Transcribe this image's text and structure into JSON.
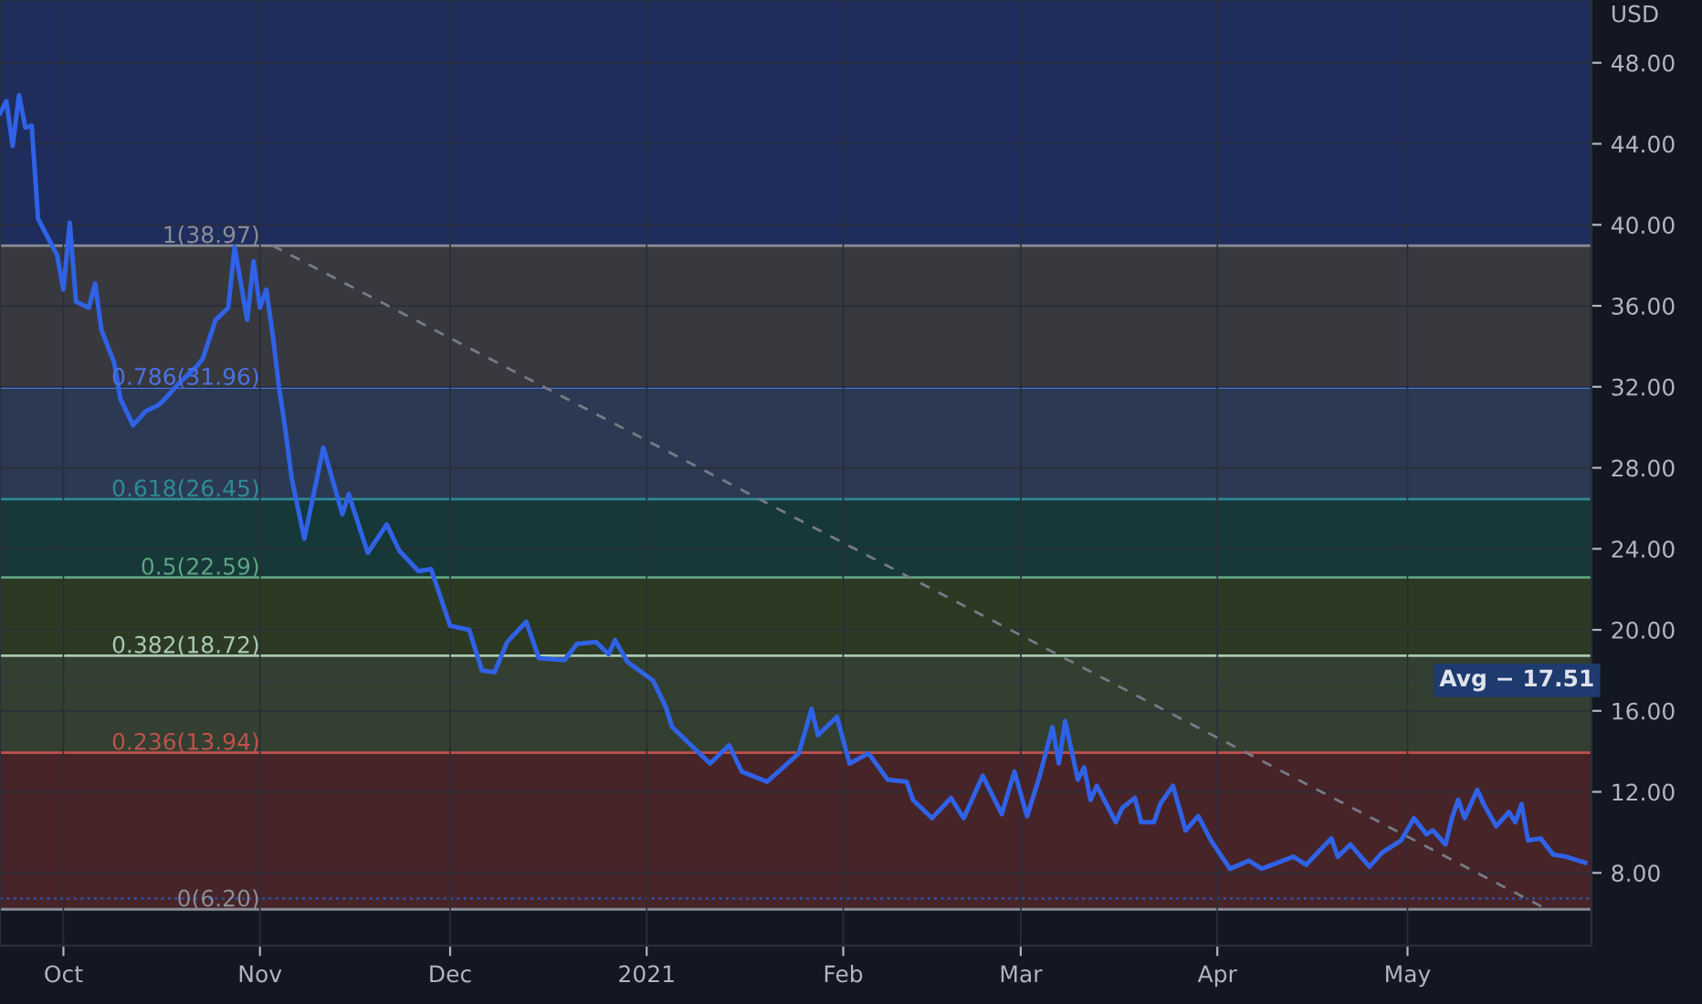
{
  "chart_data": {
    "type": "line",
    "ylabel": "USD",
    "x": [
      "2020-09-21",
      "2020-09-22",
      "2020-09-23",
      "2020-09-24",
      "2020-09-25",
      "2020-09-26",
      "2020-09-27",
      "2020-09-29",
      "2020-09-30",
      "2020-10-01",
      "2020-10-02",
      "2020-10-03",
      "2020-10-05",
      "2020-10-06",
      "2020-10-07",
      "2020-10-09",
      "2020-10-10",
      "2020-10-12",
      "2020-10-14",
      "2020-10-16",
      "2020-10-17",
      "2020-10-19",
      "2020-10-22",
      "2020-10-23",
      "2020-10-25",
      "2020-10-27",
      "2020-10-28",
      "2020-10-30",
      "2020-10-31",
      "2020-11-01",
      "2020-11-02",
      "2020-11-03",
      "2020-11-04",
      "2020-11-05",
      "2020-11-06",
      "2020-11-08",
      "2020-11-11",
      "2020-11-14",
      "2020-11-15",
      "2020-11-18",
      "2020-11-21",
      "2020-11-23",
      "2020-11-26",
      "2020-11-28",
      "2020-12-01",
      "2020-12-04",
      "2020-12-06",
      "2020-12-08",
      "2020-12-10",
      "2020-12-13",
      "2020-12-15",
      "2020-12-19",
      "2020-12-21",
      "2020-12-24",
      "2020-12-26",
      "2020-12-27",
      "2020-12-29",
      "2021-01-02",
      "2021-01-04",
      "2021-01-05",
      "2021-01-11",
      "2021-01-14",
      "2021-01-16",
      "2021-01-20",
      "2021-01-25",
      "2021-01-27",
      "2021-01-28",
      "2021-01-31",
      "2021-02-02",
      "2021-02-05",
      "2021-02-08",
      "2021-02-11",
      "2021-02-12",
      "2021-02-15",
      "2021-02-18",
      "2021-02-20",
      "2021-02-23",
      "2021-02-26",
      "2021-02-28",
      "2021-03-02",
      "2021-03-04",
      "2021-03-06",
      "2021-03-07",
      "2021-03-08",
      "2021-03-10",
      "2021-03-11",
      "2021-03-12",
      "2021-03-13",
      "2021-03-16",
      "2021-03-17",
      "2021-03-19",
      "2021-03-20",
      "2021-03-22",
      "2021-03-23",
      "2021-03-25",
      "2021-03-27",
      "2021-03-29",
      "2021-03-31",
      "2021-04-03",
      "2021-04-06",
      "2021-04-08",
      "2021-04-13",
      "2021-04-15",
      "2021-04-19",
      "2021-04-20",
      "2021-04-22",
      "2021-04-25",
      "2021-04-27",
      "2021-04-30",
      "2021-05-02",
      "2021-05-04",
      "2021-05-05",
      "2021-05-07",
      "2021-05-08",
      "2021-05-09",
      "2021-05-10",
      "2021-05-12",
      "2021-05-13",
      "2021-05-15",
      "2021-05-17",
      "2021-05-18",
      "2021-05-19",
      "2021-05-20",
      "2021-05-22",
      "2021-05-24",
      "2021-05-26",
      "2021-05-29"
    ],
    "values": [
      45.5,
      46.1,
      43.9,
      46.4,
      44.8,
      44.9,
      40.3,
      39.1,
      38.5,
      36.8,
      40.1,
      36.2,
      35.9,
      37.1,
      34.8,
      33.2,
      31.4,
      30.1,
      30.8,
      31.1,
      31.4,
      32.1,
      33.0,
      33.4,
      35.3,
      35.9,
      38.9,
      35.3,
      38.2,
      35.9,
      36.8,
      34.6,
      32.0,
      29.9,
      27.5,
      24.5,
      29.0,
      25.7,
      26.7,
      23.8,
      25.2,
      23.9,
      22.9,
      23.0,
      20.2,
      20.0,
      18.0,
      17.9,
      19.4,
      20.4,
      18.6,
      18.5,
      19.3,
      19.4,
      18.8,
      19.5,
      18.4,
      17.5,
      16.2,
      15.2,
      13.4,
      14.3,
      13.0,
      12.5,
      13.9,
      16.1,
      14.8,
      15.7,
      13.4,
      13.9,
      12.6,
      12.5,
      11.6,
      10.7,
      11.7,
      10.7,
      12.8,
      10.9,
      13.0,
      10.8,
      12.8,
      15.2,
      13.4,
      15.5,
      12.6,
      13.2,
      11.6,
      12.3,
      10.5,
      11.2,
      11.7,
      10.5,
      10.5,
      11.4,
      12.3,
      10.1,
      10.8,
      9.6,
      8.2,
      8.6,
      8.2,
      8.8,
      8.4,
      9.7,
      8.8,
      9.4,
      8.3,
      9.0,
      9.6,
      10.7,
      9.9,
      10.1,
      9.4,
      10.7,
      11.6,
      10.7,
      12.1,
      11.4,
      10.3,
      11.0,
      10.5,
      11.4,
      9.6,
      9.7,
      8.9,
      8.8,
      8.5
    ],
    "color": "#2f62e6",
    "series": [
      {
        "type": "line",
        "x": [
          "2020-11-03",
          "2021-05-23"
        ],
        "values": [
          38.97,
          6.2
        ],
        "color": "#787b86",
        "line_style": "dashed"
      }
    ],
    "xlim": [
      "2020-09-21",
      "2021-05-30"
    ],
    "xticks": [
      {
        "value": "2020-10-01",
        "label": "Oct"
      },
      {
        "value": "2020-11-01",
        "label": "Nov"
      },
      {
        "value": "2020-12-01",
        "label": "Dec"
      },
      {
        "value": "2021-01-01",
        "label": "2021"
      },
      {
        "value": "2021-02-01",
        "label": "Feb"
      },
      {
        "value": "2021-03-01",
        "label": "Mar"
      },
      {
        "value": "2021-04-01",
        "label": "Apr"
      },
      {
        "value": "2021-05-01",
        "label": "May"
      }
    ],
    "ylim": [
      4.4,
      51.1
    ],
    "yticks": [
      {
        "value": 8,
        "label": "8.00"
      },
      {
        "value": 12,
        "label": "12.00"
      },
      {
        "value": 16,
        "label": "16.00"
      },
      {
        "value": 20,
        "label": "20.00"
      },
      {
        "value": 24,
        "label": "24.00"
      },
      {
        "value": 28,
        "label": "28.00"
      },
      {
        "value": 32,
        "label": "32.00"
      },
      {
        "value": 36,
        "label": "36.00"
      },
      {
        "value": 40,
        "label": "40.00"
      },
      {
        "value": 44,
        "label": "44.00"
      },
      {
        "value": 48,
        "label": "48.00"
      }
    ],
    "bands": [
      {
        "axis": "y",
        "from": 38.97,
        "to": 51.1,
        "color": "#1e2d5c"
      },
      {
        "axis": "y",
        "from": 31.96,
        "to": 38.97,
        "color": "#38393f"
      },
      {
        "axis": "y",
        "from": 26.45,
        "to": 31.96,
        "color": "#2b3a52"
      },
      {
        "axis": "y",
        "from": 22.59,
        "to": 26.45,
        "color": "#163838"
      },
      {
        "axis": "y",
        "from": 18.72,
        "to": 22.59,
        "color": "#2c3a24"
      },
      {
        "axis": "y",
        "from": 13.94,
        "to": 18.72,
        "color": "#333f30"
      },
      {
        "axis": "y",
        "from": 6.2,
        "to": 13.94,
        "color": "#472428"
      }
    ],
    "ref_lines": [
      {
        "axis": "y",
        "value": 38.97,
        "label": "1(38.97)",
        "color": "#8a8d96"
      },
      {
        "axis": "y",
        "value": 31.96,
        "label": "0.786(31.96)",
        "color": "#4a72e0"
      },
      {
        "axis": "y",
        "value": 26.45,
        "label": "0.618(26.45)",
        "color": "#2f8a96"
      },
      {
        "axis": "y",
        "value": 22.59,
        "label": "0.5(22.59)",
        "color": "#5fa382"
      },
      {
        "axis": "y",
        "value": 18.72,
        "label": "0.382(18.72)",
        "color": "#a9c9b4"
      },
      {
        "axis": "y",
        "value": 13.94,
        "label": "0.236(13.94)",
        "color": "#c0504d"
      },
      {
        "axis": "y",
        "value": 6.2,
        "label": "0(6.20)",
        "color": "#8a8d96"
      },
      {
        "axis": "y",
        "value": 6.74,
        "color": "#2f4fa8",
        "line_style": "dotted"
      },
      {
        "axis": "y",
        "value": 17.51,
        "label": "Avg − 17.51",
        "color": "#1e3a6e",
        "line_style": "dotted"
      }
    ],
    "grid": true,
    "legend": false
  }
}
